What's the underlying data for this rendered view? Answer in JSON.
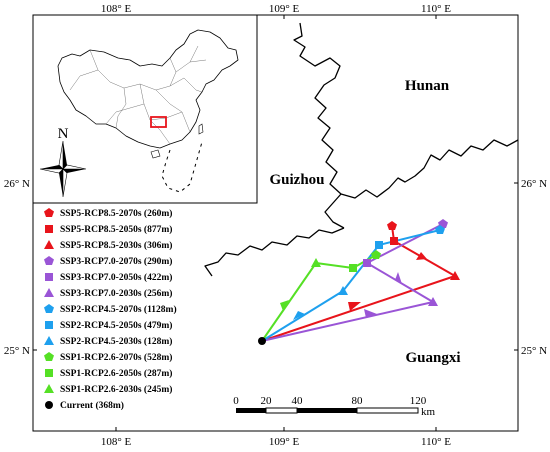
{
  "lon_ticks": [
    "108° E",
    "109° E",
    "110° E"
  ],
  "lat_ticks": [
    "26° N",
    "25° N"
  ],
  "regions": {
    "hunan": "Hunan",
    "guizhou": "Guizhou",
    "guangxi": "Guangxi"
  },
  "north_label": "N",
  "scale": {
    "ticks": [
      "0",
      "20",
      "40",
      "80",
      "120"
    ],
    "unit": "km"
  },
  "legend": [
    {
      "label": "SSP5-RCP8.5-2070s (260m)",
      "marker": "pentagon",
      "color": "#e8141b"
    },
    {
      "label": "SSP5-RCP8.5-2050s (877m)",
      "marker": "square",
      "color": "#e8141b"
    },
    {
      "label": "SSP5-RCP8.5-2030s (306m)",
      "marker": "triangle",
      "color": "#e8141b"
    },
    {
      "label": "SSP3-RCP7.0-2070s (290m)",
      "marker": "pentagon",
      "color": "#9a55d6"
    },
    {
      "label": "SSP3-RCP7.0-2050s (422m)",
      "marker": "square",
      "color": "#9a55d6"
    },
    {
      "label": "SSP3-RCP7.0-2030s (256m)",
      "marker": "triangle",
      "color": "#9a55d6"
    },
    {
      "label": "SSP2-RCP4.5-2070s (1128m)",
      "marker": "pentagon",
      "color": "#1ea0ee"
    },
    {
      "label": "SSP2-RCP4.5-2050s (479m)",
      "marker": "square",
      "color": "#1ea0ee"
    },
    {
      "label": "SSP2-RCP4.5-2030s (128m)",
      "marker": "triangle",
      "color": "#1ea0ee"
    },
    {
      "label": "SSP1-RCP2.6-2070s (528m)",
      "marker": "pentagon",
      "color": "#55e025"
    },
    {
      "label": "SSP1-RCP2.6-2050s (287m)",
      "marker": "square",
      "color": "#55e025"
    },
    {
      "label": "SSP1-RCP2.6-2030s (245m)",
      "marker": "triangle",
      "color": "#55e025"
    },
    {
      "label": "Current (368m)",
      "marker": "circle",
      "color": "#000000"
    }
  ]
}
